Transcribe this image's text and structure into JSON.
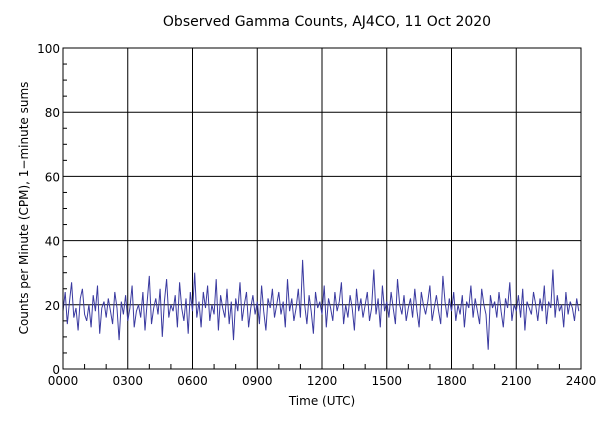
{
  "chart_data": {
    "type": "line",
    "title": "Observed Gamma Counts, AJ4CO, 11 Oct 2020",
    "xlabel": "Time (UTC)",
    "ylabel": "Counts per Minute (CPM), 1−minute sums",
    "xlim": [
      0,
      24
    ],
    "ylim": [
      0,
      100
    ],
    "x_ticks": [
      "0000",
      "0300",
      "0600",
      "0900",
      "1200",
      "1500",
      "1800",
      "2100",
      "2400"
    ],
    "y_ticks": [
      "0",
      "20",
      "40",
      "60",
      "80",
      "100"
    ],
    "grid": true,
    "line_color": "#3a3aa0",
    "series": [
      {
        "x_start_hour": 0,
        "x_step_hours": 0.1,
        "values": [
          18,
          24,
          14,
          21,
          27,
          16,
          19,
          12,
          22,
          25,
          17,
          15,
          20,
          13,
          23,
          18,
          26,
          11,
          19,
          21,
          16,
          22,
          18,
          14,
          24,
          19,
          9,
          21,
          17,
          23,
          15,
          19,
          26,
          13,
          18,
          20,
          16,
          24,
          12,
          21,
          29,
          14,
          19,
          22,
          17,
          25,
          10,
          21,
          28,
          16,
          20,
          18,
          23,
          13,
          27,
          19,
          15,
          22,
          11,
          24,
          18,
          30,
          16,
          21,
          13,
          24,
          19,
          26,
          15,
          20,
          17,
          28,
          12,
          23,
          19,
          16,
          25,
          14,
          21,
          9,
          22,
          18,
          27,
          15,
          20,
          24,
          13,
          19,
          23,
          17,
          21,
          14,
          26,
          18,
          12,
          22,
          19,
          25,
          16,
          20,
          24,
          17,
          21,
          13,
          28,
          18,
          22,
          15,
          19,
          25,
          16,
          34,
          20,
          14,
          23,
          18,
          11,
          24,
          19,
          21,
          17,
          26,
          13,
          22,
          19,
          15,
          24,
          18,
          21,
          27,
          14,
          20,
          16,
          23,
          19,
          12,
          25,
          18,
          22,
          16,
          20,
          24,
          15,
          19,
          31,
          17,
          22,
          13,
          26,
          18,
          21,
          16,
          24,
          19,
          14,
          28,
          20,
          17,
          23,
          15,
          19,
          22,
          16,
          25,
          18,
          13,
          24,
          20,
          17,
          21,
          26,
          15,
          19,
          23,
          18,
          14,
          29,
          21,
          16,
          22,
          18,
          24,
          15,
          20,
          17,
          23,
          13,
          21,
          19,
          26,
          16,
          22,
          18,
          14,
          25,
          20,
          17,
          6,
          23,
          19,
          21,
          16,
          24,
          18,
          13,
          22,
          19,
          27,
          15,
          20,
          18,
          23,
          16,
          25,
          12,
          21,
          19,
          17,
          24,
          20,
          15,
          22,
          18,
          26,
          14,
          21,
          19,
          31,
          16,
          23,
          18,
          20,
          13,
          24,
          17,
          21,
          19,
          15,
          22,
          18
        ]
      }
    ]
  }
}
